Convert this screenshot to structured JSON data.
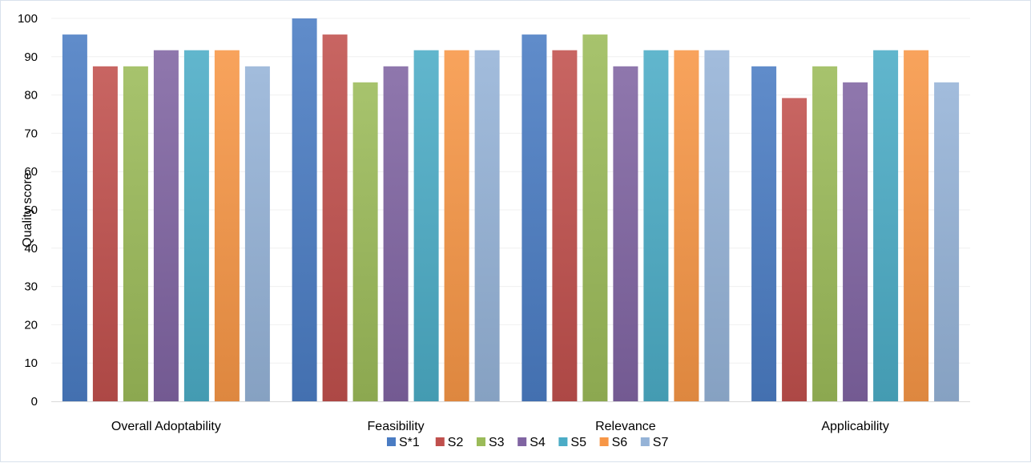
{
  "chart_data": {
    "type": "bar",
    "title": "",
    "xlabel": "",
    "ylabel": "Quality score",
    "ylim": [
      0,
      100
    ],
    "yticks": [
      0,
      10,
      20,
      30,
      40,
      50,
      60,
      70,
      80,
      90,
      100
    ],
    "grid": true,
    "legend_position": "bottom",
    "categories": [
      "Overall Adoptability",
      "Feasibility",
      "Relevance",
      "Applicability"
    ],
    "series": [
      {
        "name": "S*1",
        "color": "#4a7cc3",
        "values": [
          95.8,
          100,
          95.8,
          87.5
        ]
      },
      {
        "name": "S2",
        "color": "#c0504d",
        "values": [
          87.5,
          95.8,
          91.7,
          79.2
        ]
      },
      {
        "name": "S3",
        "color": "#9bbb59",
        "values": [
          87.5,
          83.3,
          95.8,
          87.5
        ]
      },
      {
        "name": "S4",
        "color": "#8064a2",
        "values": [
          91.7,
          87.5,
          87.5,
          83.3
        ]
      },
      {
        "name": "S5",
        "color": "#4bacc6",
        "values": [
          91.7,
          91.7,
          91.7,
          91.7
        ]
      },
      {
        "name": "S6",
        "color": "#f79646",
        "values": [
          91.7,
          91.7,
          91.7,
          91.7
        ]
      },
      {
        "name": "S7",
        "color": "#95b3d7",
        "values": [
          87.5,
          91.7,
          91.7,
          83.3
        ]
      }
    ]
  }
}
